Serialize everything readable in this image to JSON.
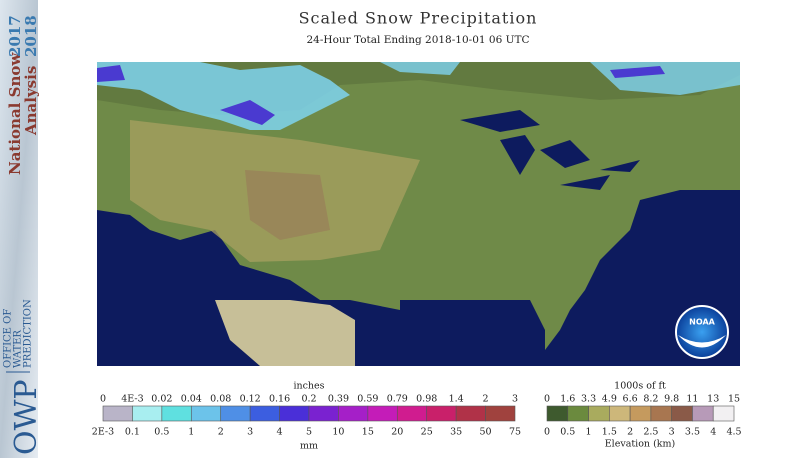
{
  "header": {
    "title": "Scaled Snow Precipitation",
    "subtitle": "24-Hour Total Ending 2018-10-01 06 UTC"
  },
  "sidebar": {
    "line1": "National Snow",
    "year1": "2017",
    "line2": "Analysis",
    "year2": "2018",
    "logo": "OWP",
    "org": [
      "OFFICE OF",
      "WATER",
      "PREDICTION"
    ]
  },
  "map": {
    "logo": "NOAA"
  },
  "snow_legend": {
    "top_unit": "inches",
    "top_labels": [
      "0",
      "4E-3",
      "0.02",
      "0.04",
      "0.08",
      "0.12",
      "0.16",
      "0.2",
      "0.39",
      "0.59",
      "0.79",
      "0.98",
      "1.4",
      "2",
      "3"
    ],
    "bottom_labels": [
      "2E-3",
      "0.1",
      "0.5",
      "1",
      "2",
      "3",
      "4",
      "5",
      "10",
      "15",
      "20",
      "25",
      "35",
      "50",
      "75"
    ],
    "bottom_unit": "mm",
    "colors": [
      "#b9b4c8",
      "#a8eef0",
      "#5fe0e0",
      "#6cc3ea",
      "#4f8fe6",
      "#3c5ee0",
      "#4a2fd8",
      "#7a22d0",
      "#a51fc8",
      "#c41cb8",
      "#d01c8f",
      "#c9206a",
      "#b03248",
      "#a0423e"
    ]
  },
  "elevation_legend": {
    "top_unit": "1000s of ft",
    "top_labels": [
      "0",
      "1.6",
      "3.3",
      "4.9",
      "6.6",
      "8.2",
      "9.8",
      "11",
      "13",
      "15"
    ],
    "bottom_labels": [
      "0",
      "0.5",
      "1",
      "1.5",
      "2",
      "2.5",
      "3",
      "3.5",
      "4",
      "4.5"
    ],
    "bottom_unit": "Elevation (km)",
    "colors": [
      "#3e5a2e",
      "#6b8a3e",
      "#a9ab5e",
      "#cdb77a",
      "#c59a5e",
      "#a87650",
      "#8a5a48",
      "#b79ab8",
      "#f2f0f2"
    ]
  }
}
